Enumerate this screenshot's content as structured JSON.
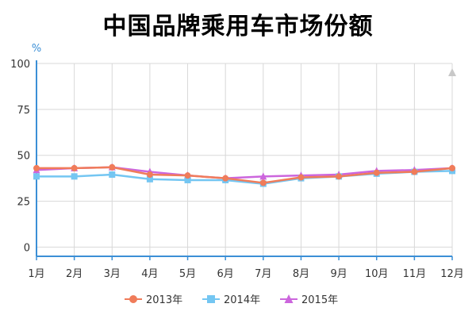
{
  "chart_data": {
    "type": "line",
    "title": "中国品牌乘用车市场份额",
    "ylabel": "%",
    "xlabel": "",
    "categories": [
      "1月",
      "2月",
      "3月",
      "4月",
      "5月",
      "6月",
      "7月",
      "8月",
      "9月",
      "10月",
      "11月",
      "12月"
    ],
    "y_ticks": [
      "0",
      "25",
      "50",
      "75",
      "100"
    ],
    "ylim": [
      -5,
      100
    ],
    "grid": true,
    "legend_position": "bottom-center",
    "series": [
      {
        "name": "2013年",
        "color": "#f07c5a",
        "marker": "circle",
        "values": [
          43,
          43,
          43.5,
          39.5,
          39,
          37.5,
          35,
          38,
          38.5,
          40.5,
          41,
          43
        ]
      },
      {
        "name": "2014年",
        "color": "#74c6f2",
        "marker": "square",
        "values": [
          38.5,
          38.5,
          39.5,
          37,
          36.5,
          36.5,
          34.5,
          37.5,
          38.5,
          40,
          41,
          41.5
        ]
      },
      {
        "name": "2015年",
        "color": "#cc66dd",
        "marker": "triangle",
        "values": [
          42,
          43,
          43.5,
          41,
          39,
          37.5,
          38.5,
          39,
          39.5,
          41.5,
          42,
          43
        ]
      }
    ],
    "top_marker_color": "#c8c8c8"
  }
}
